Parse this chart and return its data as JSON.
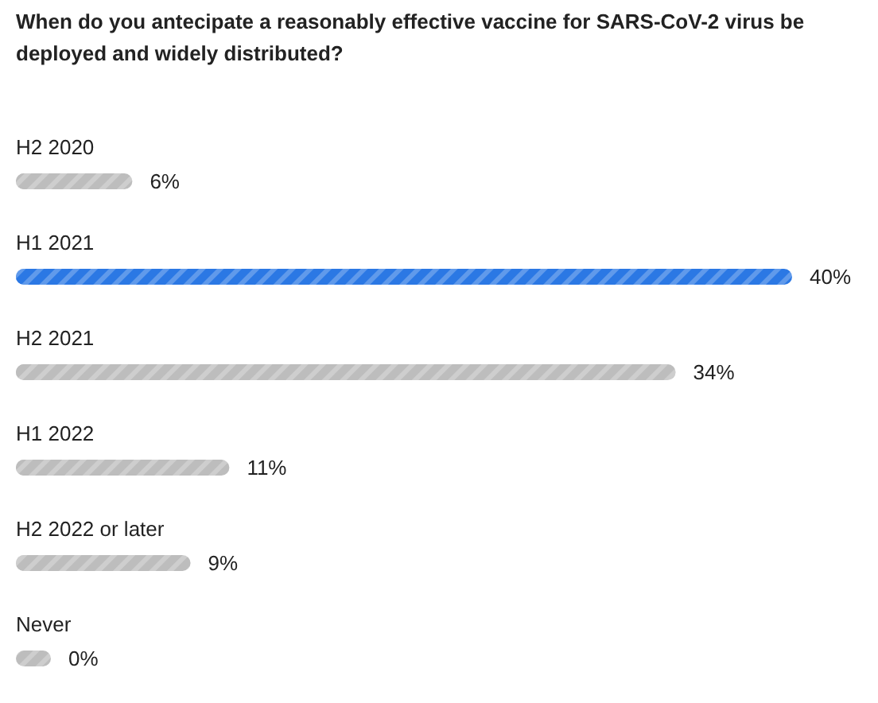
{
  "chart_data": {
    "type": "bar",
    "orientation": "horizontal",
    "title": "When do you antecipate a reasonably effective vaccine for SARS-CoV-2 virus be deployed and widely distributed?",
    "categories": [
      "H2 2020",
      "H1 2021",
      "H2 2021",
      "H1 2022",
      "H2 2022 or later",
      "Never"
    ],
    "values": [
      6,
      40,
      34,
      11,
      9,
      0
    ],
    "value_labels": [
      "6%",
      "40%",
      "34%",
      "11%",
      "9%",
      "0%"
    ],
    "colors": [
      "#bdbdbd",
      "#2b78e4",
      "#bdbdbd",
      "#bdbdbd",
      "#bdbdbd",
      "#bdbdbd"
    ]
  }
}
